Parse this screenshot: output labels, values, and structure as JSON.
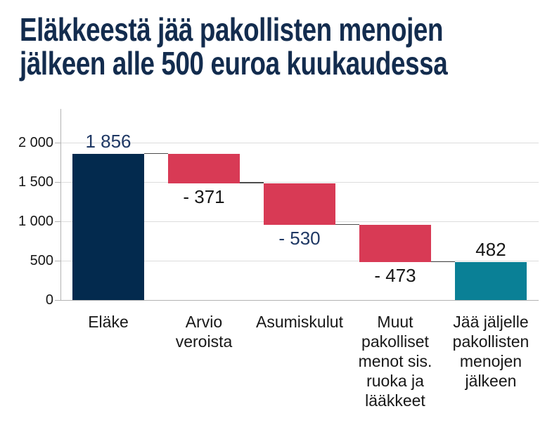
{
  "chart_data": {
    "type": "waterfall",
    "title": "Eläkkeestä jää pakollisten menojen jälkeen alle 500 euroa kuukaudessa",
    "title_lines": [
      "Eläkkeestä jää pakollisten menojen",
      "jälkeen alle 500 euroa kuukaudessa"
    ],
    "categories": [
      "Eläke",
      "Arvio veroista",
      "Asumiskulut",
      "Muut pakolliset menot sis. ruoka ja lääkkeet",
      "Jää jäljelle pakollisten menojen jälkeen"
    ],
    "bars": [
      {
        "label": "Eläke",
        "start": 0,
        "end": 1856,
        "value": 1856,
        "value_label": "1 856",
        "value_label_position": "above",
        "value_label_color": "value_navy",
        "color_key": "navy"
      },
      {
        "label": "Arvio\nveroista",
        "start": 1856,
        "end": 1485,
        "value": -371,
        "value_label": "- 371",
        "value_label_position": "below",
        "value_label_color": "value_black",
        "color_key": "red"
      },
      {
        "label": "Asumiskulut",
        "start": 1485,
        "end": 955,
        "value": -530,
        "value_label": "- 530",
        "value_label_position": "below",
        "value_label_color": "value_navy",
        "color_key": "red"
      },
      {
        "label": "Muut\npakolliset\nmenot sis.\nruoka ja\nlääkkeet",
        "start": 955,
        "end": 482,
        "value": -473,
        "value_label": "- 473",
        "value_label_position": "below",
        "value_label_color": "value_black",
        "color_key": "red"
      },
      {
        "label": "Jää jäljelle\npakollisten\nmenojen\njälkeen",
        "start": 0,
        "end": 482,
        "value": 482,
        "value_label": "482",
        "value_label_position": "above",
        "value_label_color": "value_black",
        "color_key": "teal"
      }
    ],
    "y_axis": {
      "ticks": [
        "0",
        "500",
        "1 000",
        "1 500",
        "2 000"
      ],
      "tick_values": [
        0,
        500,
        1000,
        1500,
        2000
      ],
      "min": 0,
      "max": 2000,
      "grid": true
    },
    "legend": null,
    "colors": {
      "navy": "#032a4e",
      "red": "#d83a55",
      "teal": "#0a8096",
      "value_navy": "#1f3864",
      "value_black": "#171717",
      "title": "#132c4e",
      "tick_label": "#171717",
      "grid": "#dcdcdc",
      "axis": "#b3b3b3",
      "connector": "#4d4d4d",
      "background": "#ffffff"
    }
  }
}
